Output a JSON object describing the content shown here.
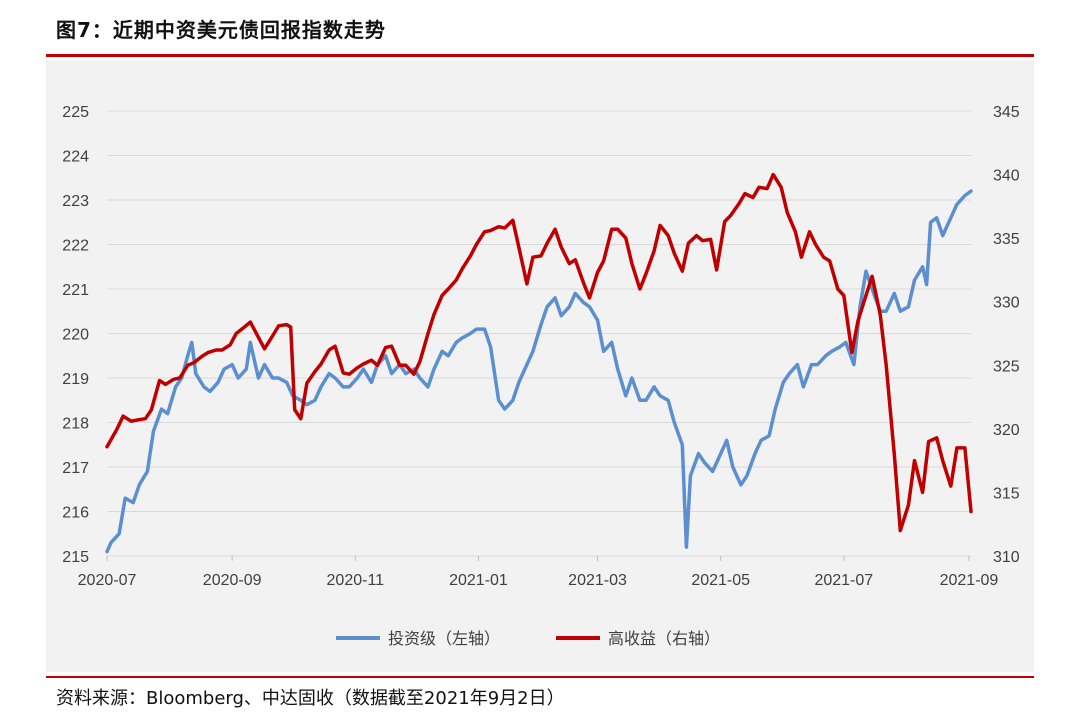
{
  "header": {
    "title": "图7：近期中资美元债回报指数走势"
  },
  "footer": {
    "source": "资料来源：Bloomberg、中达固收（数据截至2021年9月2日）"
  },
  "colors": {
    "rule": "#c00000",
    "panel": "#f2f2f2",
    "grid": "#d9d9d9",
    "axis_text": "#404040"
  },
  "chart_data": {
    "type": "line",
    "grid": "horizontal",
    "legend_position": "bottom",
    "x_range": [
      "2020-07-01",
      "2021-09-02"
    ],
    "x_ticks": [
      {
        "date": "2020-07-01",
        "label": "2020-07"
      },
      {
        "date": "2020-09-01",
        "label": "2020-09"
      },
      {
        "date": "2020-11-01",
        "label": "2020-11"
      },
      {
        "date": "2021-01-01",
        "label": "2021-01"
      },
      {
        "date": "2021-03-01",
        "label": "2021-03"
      },
      {
        "date": "2021-05-01",
        "label": "2021-05"
      },
      {
        "date": "2021-07-01",
        "label": "2021-07"
      },
      {
        "date": "2021-09-01",
        "label": "2021-09"
      }
    ],
    "y_left": {
      "range": [
        215,
        225
      ],
      "ticks": [
        215,
        216,
        217,
        218,
        219,
        220,
        221,
        222,
        223,
        224,
        225
      ]
    },
    "y_right": {
      "range": [
        310,
        345
      ],
      "ticks": [
        310,
        315,
        320,
        325,
        330,
        335,
        340,
        345
      ]
    },
    "series": [
      {
        "name": "投资级（左轴）",
        "axis": "left",
        "color": "#5b8fd0",
        "points": [
          [
            "2020-07-01",
            215.1
          ],
          [
            "2020-07-03",
            215.3
          ],
          [
            "2020-07-07",
            215.5
          ],
          [
            "2020-07-10",
            216.3
          ],
          [
            "2020-07-14",
            216.2
          ],
          [
            "2020-07-17",
            216.6
          ],
          [
            "2020-07-21",
            216.9
          ],
          [
            "2020-07-24",
            217.8
          ],
          [
            "2020-07-28",
            218.3
          ],
          [
            "2020-07-31",
            218.2
          ],
          [
            "2020-08-04",
            218.8
          ],
          [
            "2020-08-07",
            219.0
          ],
          [
            "2020-08-10",
            219.5
          ],
          [
            "2020-08-12",
            219.8
          ],
          [
            "2020-08-14",
            219.1
          ],
          [
            "2020-08-18",
            218.8
          ],
          [
            "2020-08-21",
            218.7
          ],
          [
            "2020-08-25",
            218.9
          ],
          [
            "2020-08-28",
            219.2
          ],
          [
            "2020-09-01",
            219.3
          ],
          [
            "2020-09-04",
            219.0
          ],
          [
            "2020-09-08",
            219.2
          ],
          [
            "2020-09-10",
            219.8
          ],
          [
            "2020-09-14",
            219.0
          ],
          [
            "2020-09-17",
            219.3
          ],
          [
            "2020-09-21",
            219.0
          ],
          [
            "2020-09-24",
            219.0
          ],
          [
            "2020-09-28",
            218.9
          ],
          [
            "2020-10-01",
            218.6
          ],
          [
            "2020-10-05",
            218.5
          ],
          [
            "2020-10-08",
            218.4
          ],
          [
            "2020-10-12",
            218.5
          ],
          [
            "2020-10-15",
            218.8
          ],
          [
            "2020-10-19",
            219.1
          ],
          [
            "2020-10-22",
            219.0
          ],
          [
            "2020-10-26",
            218.8
          ],
          [
            "2020-10-29",
            218.8
          ],
          [
            "2020-11-02",
            219.0
          ],
          [
            "2020-11-05",
            219.2
          ],
          [
            "2020-11-09",
            218.9
          ],
          [
            "2020-11-12",
            219.3
          ],
          [
            "2020-11-16",
            219.5
          ],
          [
            "2020-11-19",
            219.1
          ],
          [
            "2020-11-23",
            219.3
          ],
          [
            "2020-11-26",
            219.1
          ],
          [
            "2020-11-30",
            219.2
          ],
          [
            "2020-12-03",
            219.0
          ],
          [
            "2020-12-07",
            218.8
          ],
          [
            "2020-12-10",
            219.2
          ],
          [
            "2020-12-14",
            219.6
          ],
          [
            "2020-12-17",
            219.5
          ],
          [
            "2020-12-21",
            219.8
          ],
          [
            "2020-12-24",
            219.9
          ],
          [
            "2020-12-28",
            220.0
          ],
          [
            "2020-12-31",
            220.1
          ],
          [
            "2021-01-04",
            220.1
          ],
          [
            "2021-01-07",
            219.7
          ],
          [
            "2021-01-11",
            218.5
          ],
          [
            "2021-01-14",
            218.3
          ],
          [
            "2021-01-18",
            218.5
          ],
          [
            "2021-01-21",
            218.9
          ],
          [
            "2021-01-25",
            219.3
          ],
          [
            "2021-01-28",
            219.6
          ],
          [
            "2021-02-01",
            220.2
          ],
          [
            "2021-02-04",
            220.6
          ],
          [
            "2021-02-08",
            220.8
          ],
          [
            "2021-02-11",
            220.4
          ],
          [
            "2021-02-15",
            220.6
          ],
          [
            "2021-02-18",
            220.9
          ],
          [
            "2021-02-22",
            220.7
          ],
          [
            "2021-02-25",
            220.6
          ],
          [
            "2021-03-01",
            220.3
          ],
          [
            "2021-03-04",
            219.6
          ],
          [
            "2021-03-08",
            219.8
          ],
          [
            "2021-03-11",
            219.2
          ],
          [
            "2021-03-15",
            218.6
          ],
          [
            "2021-03-18",
            219.0
          ],
          [
            "2021-03-22",
            218.5
          ],
          [
            "2021-03-25",
            218.5
          ],
          [
            "2021-03-29",
            218.8
          ],
          [
            "2021-04-01",
            218.6
          ],
          [
            "2021-04-05",
            218.5
          ],
          [
            "2021-04-08",
            218.0
          ],
          [
            "2021-04-12",
            217.5
          ],
          [
            "2021-04-14",
            215.2
          ],
          [
            "2021-04-16",
            216.8
          ],
          [
            "2021-04-20",
            217.3
          ],
          [
            "2021-04-23",
            217.1
          ],
          [
            "2021-04-27",
            216.9
          ],
          [
            "2021-04-30",
            217.2
          ],
          [
            "2021-05-04",
            217.6
          ],
          [
            "2021-05-07",
            217.0
          ],
          [
            "2021-05-11",
            216.6
          ],
          [
            "2021-05-14",
            216.8
          ],
          [
            "2021-05-18",
            217.3
          ],
          [
            "2021-05-21",
            217.6
          ],
          [
            "2021-05-25",
            217.7
          ],
          [
            "2021-05-28",
            218.3
          ],
          [
            "2021-06-01",
            218.9
          ],
          [
            "2021-06-04",
            219.1
          ],
          [
            "2021-06-08",
            219.3
          ],
          [
            "2021-06-11",
            218.8
          ],
          [
            "2021-06-15",
            219.3
          ],
          [
            "2021-06-18",
            219.3
          ],
          [
            "2021-06-22",
            219.5
          ],
          [
            "2021-06-25",
            219.6
          ],
          [
            "2021-06-29",
            219.7
          ],
          [
            "2021-07-02",
            219.8
          ],
          [
            "2021-07-06",
            219.3
          ],
          [
            "2021-07-09",
            220.6
          ],
          [
            "2021-07-12",
            221.4
          ],
          [
            "2021-07-15",
            221.0
          ],
          [
            "2021-07-19",
            220.5
          ],
          [
            "2021-07-22",
            220.5
          ],
          [
            "2021-07-26",
            220.9
          ],
          [
            "2021-07-29",
            220.5
          ],
          [
            "2021-08-02",
            220.6
          ],
          [
            "2021-08-05",
            221.2
          ],
          [
            "2021-08-09",
            221.5
          ],
          [
            "2021-08-11",
            221.1
          ],
          [
            "2021-08-13",
            222.5
          ],
          [
            "2021-08-16",
            222.6
          ],
          [
            "2021-08-19",
            222.2
          ],
          [
            "2021-08-23",
            222.6
          ],
          [
            "2021-08-26",
            222.9
          ],
          [
            "2021-08-30",
            223.1
          ],
          [
            "2021-09-02",
            223.2
          ]
        ]
      },
      {
        "name": "高收益（右轴）",
        "axis": "right",
        "color": "#c00000",
        "points": [
          [
            "2020-07-01",
            318.6
          ],
          [
            "2020-07-06",
            320.0
          ],
          [
            "2020-07-09",
            321.0
          ],
          [
            "2020-07-13",
            320.6
          ],
          [
            "2020-07-16",
            320.7
          ],
          [
            "2020-07-20",
            320.8
          ],
          [
            "2020-07-23",
            321.5
          ],
          [
            "2020-07-27",
            323.8
          ],
          [
            "2020-07-30",
            323.5
          ],
          [
            "2020-08-03",
            323.9
          ],
          [
            "2020-08-06",
            324.0
          ],
          [
            "2020-08-10",
            325.0
          ],
          [
            "2020-08-13",
            325.2
          ],
          [
            "2020-08-17",
            325.7
          ],
          [
            "2020-08-20",
            326.0
          ],
          [
            "2020-08-24",
            326.2
          ],
          [
            "2020-08-27",
            326.2
          ],
          [
            "2020-08-31",
            326.6
          ],
          [
            "2020-09-03",
            327.5
          ],
          [
            "2020-09-07",
            328.0
          ],
          [
            "2020-09-10",
            328.4
          ],
          [
            "2020-09-14",
            327.2
          ],
          [
            "2020-09-17",
            326.3
          ],
          [
            "2020-09-21",
            327.3
          ],
          [
            "2020-09-24",
            328.1
          ],
          [
            "2020-09-28",
            328.2
          ],
          [
            "2020-09-30",
            328.0
          ],
          [
            "2020-10-02",
            321.5
          ],
          [
            "2020-10-05",
            320.8
          ],
          [
            "2020-10-08",
            323.6
          ],
          [
            "2020-10-12",
            324.5
          ],
          [
            "2020-10-15",
            325.1
          ],
          [
            "2020-10-19",
            326.2
          ],
          [
            "2020-10-22",
            326.5
          ],
          [
            "2020-10-26",
            324.4
          ],
          [
            "2020-10-29",
            324.3
          ],
          [
            "2020-11-02",
            324.8
          ],
          [
            "2020-11-05",
            325.1
          ],
          [
            "2020-11-09",
            325.4
          ],
          [
            "2020-11-12",
            325.0
          ],
          [
            "2020-11-16",
            326.4
          ],
          [
            "2020-11-19",
            326.5
          ],
          [
            "2020-11-23",
            325.0
          ],
          [
            "2020-11-26",
            325.0
          ],
          [
            "2020-11-30",
            324.3
          ],
          [
            "2020-12-03",
            325.3
          ],
          [
            "2020-12-07",
            327.5
          ],
          [
            "2020-12-10",
            329.0
          ],
          [
            "2020-12-14",
            330.5
          ],
          [
            "2020-12-17",
            331.0
          ],
          [
            "2020-12-21",
            331.7
          ],
          [
            "2020-12-24",
            332.6
          ],
          [
            "2020-12-28",
            333.6
          ],
          [
            "2020-12-31",
            334.5
          ],
          [
            "2021-01-04",
            335.5
          ],
          [
            "2021-01-07",
            335.6
          ],
          [
            "2021-01-11",
            335.9
          ],
          [
            "2021-01-14",
            335.8
          ],
          [
            "2021-01-18",
            336.4
          ],
          [
            "2021-01-21",
            334.3
          ],
          [
            "2021-01-25",
            331.4
          ],
          [
            "2021-01-28",
            333.5
          ],
          [
            "2021-02-01",
            333.6
          ],
          [
            "2021-02-04",
            334.6
          ],
          [
            "2021-02-08",
            335.7
          ],
          [
            "2021-02-11",
            334.3
          ],
          [
            "2021-02-15",
            333.0
          ],
          [
            "2021-02-18",
            333.3
          ],
          [
            "2021-02-22",
            331.5
          ],
          [
            "2021-02-25",
            330.3
          ],
          [
            "2021-03-01",
            332.3
          ],
          [
            "2021-03-04",
            333.2
          ],
          [
            "2021-03-08",
            335.7
          ],
          [
            "2021-03-11",
            335.7
          ],
          [
            "2021-03-15",
            335.0
          ],
          [
            "2021-03-18",
            333.0
          ],
          [
            "2021-03-22",
            331.0
          ],
          [
            "2021-03-25",
            332.2
          ],
          [
            "2021-03-29",
            334.0
          ],
          [
            "2021-04-01",
            336.0
          ],
          [
            "2021-04-05",
            335.2
          ],
          [
            "2021-04-08",
            333.8
          ],
          [
            "2021-04-12",
            332.4
          ],
          [
            "2021-04-15",
            334.6
          ],
          [
            "2021-04-19",
            335.2
          ],
          [
            "2021-04-22",
            334.8
          ],
          [
            "2021-04-26",
            334.9
          ],
          [
            "2021-04-29",
            332.5
          ],
          [
            "2021-05-03",
            336.3
          ],
          [
            "2021-05-06",
            336.8
          ],
          [
            "2021-05-10",
            337.7
          ],
          [
            "2021-05-13",
            338.5
          ],
          [
            "2021-05-17",
            338.2
          ],
          [
            "2021-05-20",
            339.0
          ],
          [
            "2021-05-24",
            338.9
          ],
          [
            "2021-05-27",
            340.0
          ],
          [
            "2021-05-31",
            339.0
          ],
          [
            "2021-06-03",
            337.0
          ],
          [
            "2021-06-07",
            335.5
          ],
          [
            "2021-06-10",
            333.5
          ],
          [
            "2021-06-14",
            335.5
          ],
          [
            "2021-06-17",
            334.5
          ],
          [
            "2021-06-21",
            333.5
          ],
          [
            "2021-06-24",
            333.2
          ],
          [
            "2021-06-28",
            331.0
          ],
          [
            "2021-07-01",
            330.5
          ],
          [
            "2021-07-05",
            326.0
          ],
          [
            "2021-07-08",
            328.5
          ],
          [
            "2021-07-12",
            330.5
          ],
          [
            "2021-07-15",
            332.0
          ],
          [
            "2021-07-19",
            329.0
          ],
          [
            "2021-07-22",
            325.0
          ],
          [
            "2021-07-26",
            318.0
          ],
          [
            "2021-07-29",
            312.0
          ],
          [
            "2021-08-02",
            314.0
          ],
          [
            "2021-08-05",
            317.5
          ],
          [
            "2021-08-09",
            315.0
          ],
          [
            "2021-08-12",
            319.0
          ],
          [
            "2021-08-16",
            319.3
          ],
          [
            "2021-08-19",
            317.5
          ],
          [
            "2021-08-23",
            315.5
          ],
          [
            "2021-08-26",
            318.5
          ],
          [
            "2021-08-30",
            318.5
          ],
          [
            "2021-09-02",
            313.5
          ]
        ]
      }
    ]
  }
}
